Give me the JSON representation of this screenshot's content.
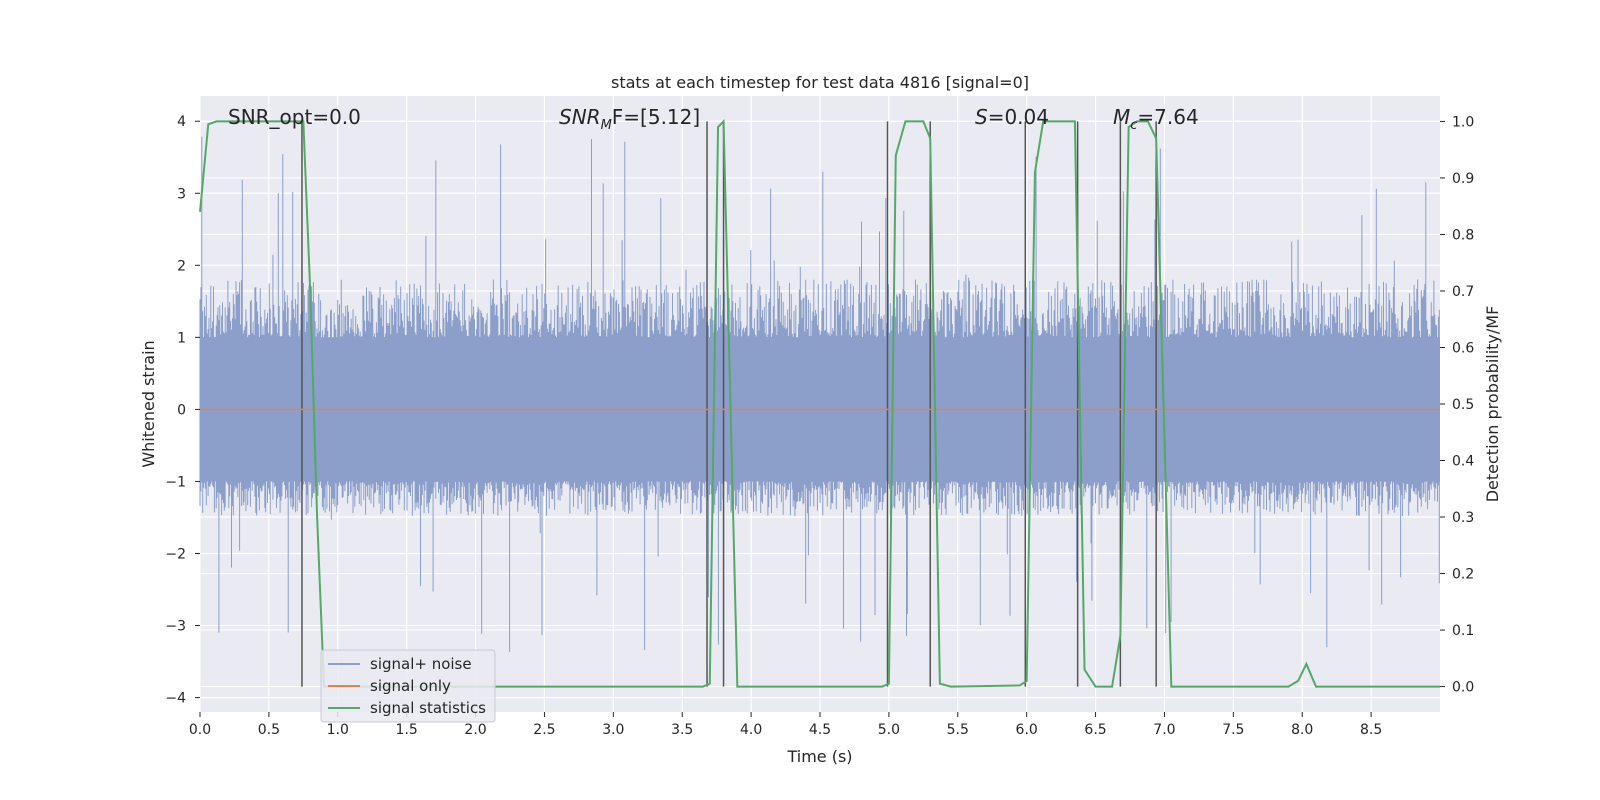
{
  "chart_data": {
    "type": "line",
    "title": "stats at each timestep for test data 4816 [signal=0]",
    "xlabel": "Time (s)",
    "ylabel_left": "Whitened strain",
    "ylabel_right": "Detection probability/MF",
    "xlim": [
      0,
      9
    ],
    "ylim_left": [
      -4.2,
      4.35
    ],
    "ylim_right": [
      -0.045,
      1.045
    ],
    "x_ticks": [
      "0.0",
      "0.5",
      "1.0",
      "1.5",
      "2.0",
      "2.5",
      "3.0",
      "3.5",
      "4.0",
      "4.5",
      "5.0",
      "5.5",
      "6.0",
      "6.5",
      "7.0",
      "7.5",
      "8.0",
      "8.5"
    ],
    "y_left_ticks": [
      "4",
      "3",
      "2",
      "1",
      "0",
      "−1",
      "−2",
      "−3",
      "−4"
    ],
    "y_right_ticks": [
      "0.0",
      "0.1",
      "0.2",
      "0.3",
      "0.4",
      "0.5",
      "0.6",
      "0.7",
      "0.8",
      "0.9",
      "1.0"
    ],
    "annotations": {
      "snr_opt": "SNR_opt=0.0",
      "snr_mf_prefix": "SNR",
      "snr_mf_sub": "M",
      "snr_mf_suffix": "F=[5.12]",
      "s_prefix": "S",
      "s_suffix": "=0.04",
      "mc_prefix": "M",
      "mc_sub": "c",
      "mc_suffix": "=7.64"
    },
    "legend": {
      "placement": "lower-left",
      "entries": [
        "signal+ noise",
        "signal only",
        "signal statistics"
      ]
    },
    "series": [
      {
        "name": "signal+ noise",
        "axis": "left",
        "color": "#8c9fcb",
        "style": "noise band",
        "typical_range": [
          -1.4,
          1.7
        ],
        "extreme_range": [
          -3.4,
          3.8
        ]
      },
      {
        "name": "signal only",
        "axis": "left",
        "color": "#dd8452",
        "x": [
          0,
          9
        ],
        "y": [
          0,
          0
        ]
      },
      {
        "name": "signal statistics",
        "axis": "right",
        "color": "#55a868",
        "x": [
          0,
          0.06,
          0.12,
          0.7,
          0.75,
          0.8,
          0.85,
          0.9,
          3.65,
          3.7,
          3.76,
          3.8,
          3.85,
          3.9,
          4.95,
          5.0,
          5.05,
          5.12,
          5.25,
          5.3,
          5.37,
          5.45,
          5.95,
          6.0,
          6.06,
          6.12,
          6.35,
          6.42,
          6.5,
          6.62,
          6.68,
          6.74,
          6.8,
          6.88,
          6.94,
          7.05,
          7.9,
          7.97,
          8.03,
          8.1,
          8.9,
          9.0
        ],
        "y": [
          0.84,
          0.995,
          1.0,
          1.0,
          1.0,
          0.7,
          0.3,
          0.0,
          0.0,
          0.005,
          0.99,
          1.0,
          0.5,
          0.0,
          0.0,
          0.005,
          0.94,
          1.0,
          1.0,
          0.97,
          0.005,
          0.0,
          0.002,
          0.01,
          0.91,
          1.0,
          1.0,
          0.03,
          0.0,
          0.0,
          0.09,
          0.99,
          1.0,
          1.0,
          0.97,
          0.0,
          0.0,
          0.01,
          0.04,
          0.0,
          0.0,
          0.0
        ]
      }
    ],
    "vertical_markers_x": [
      0.74,
      3.68,
      3.8,
      4.99,
      5.3,
      5.99,
      6.37,
      6.68,
      6.94
    ]
  },
  "colors": {
    "plot_bg": "#eaeaf2",
    "grid": "#ffffff",
    "noise": "#8c9fcb",
    "signal": "#dd8452",
    "stats": "#55a868",
    "marker": "#555555"
  }
}
